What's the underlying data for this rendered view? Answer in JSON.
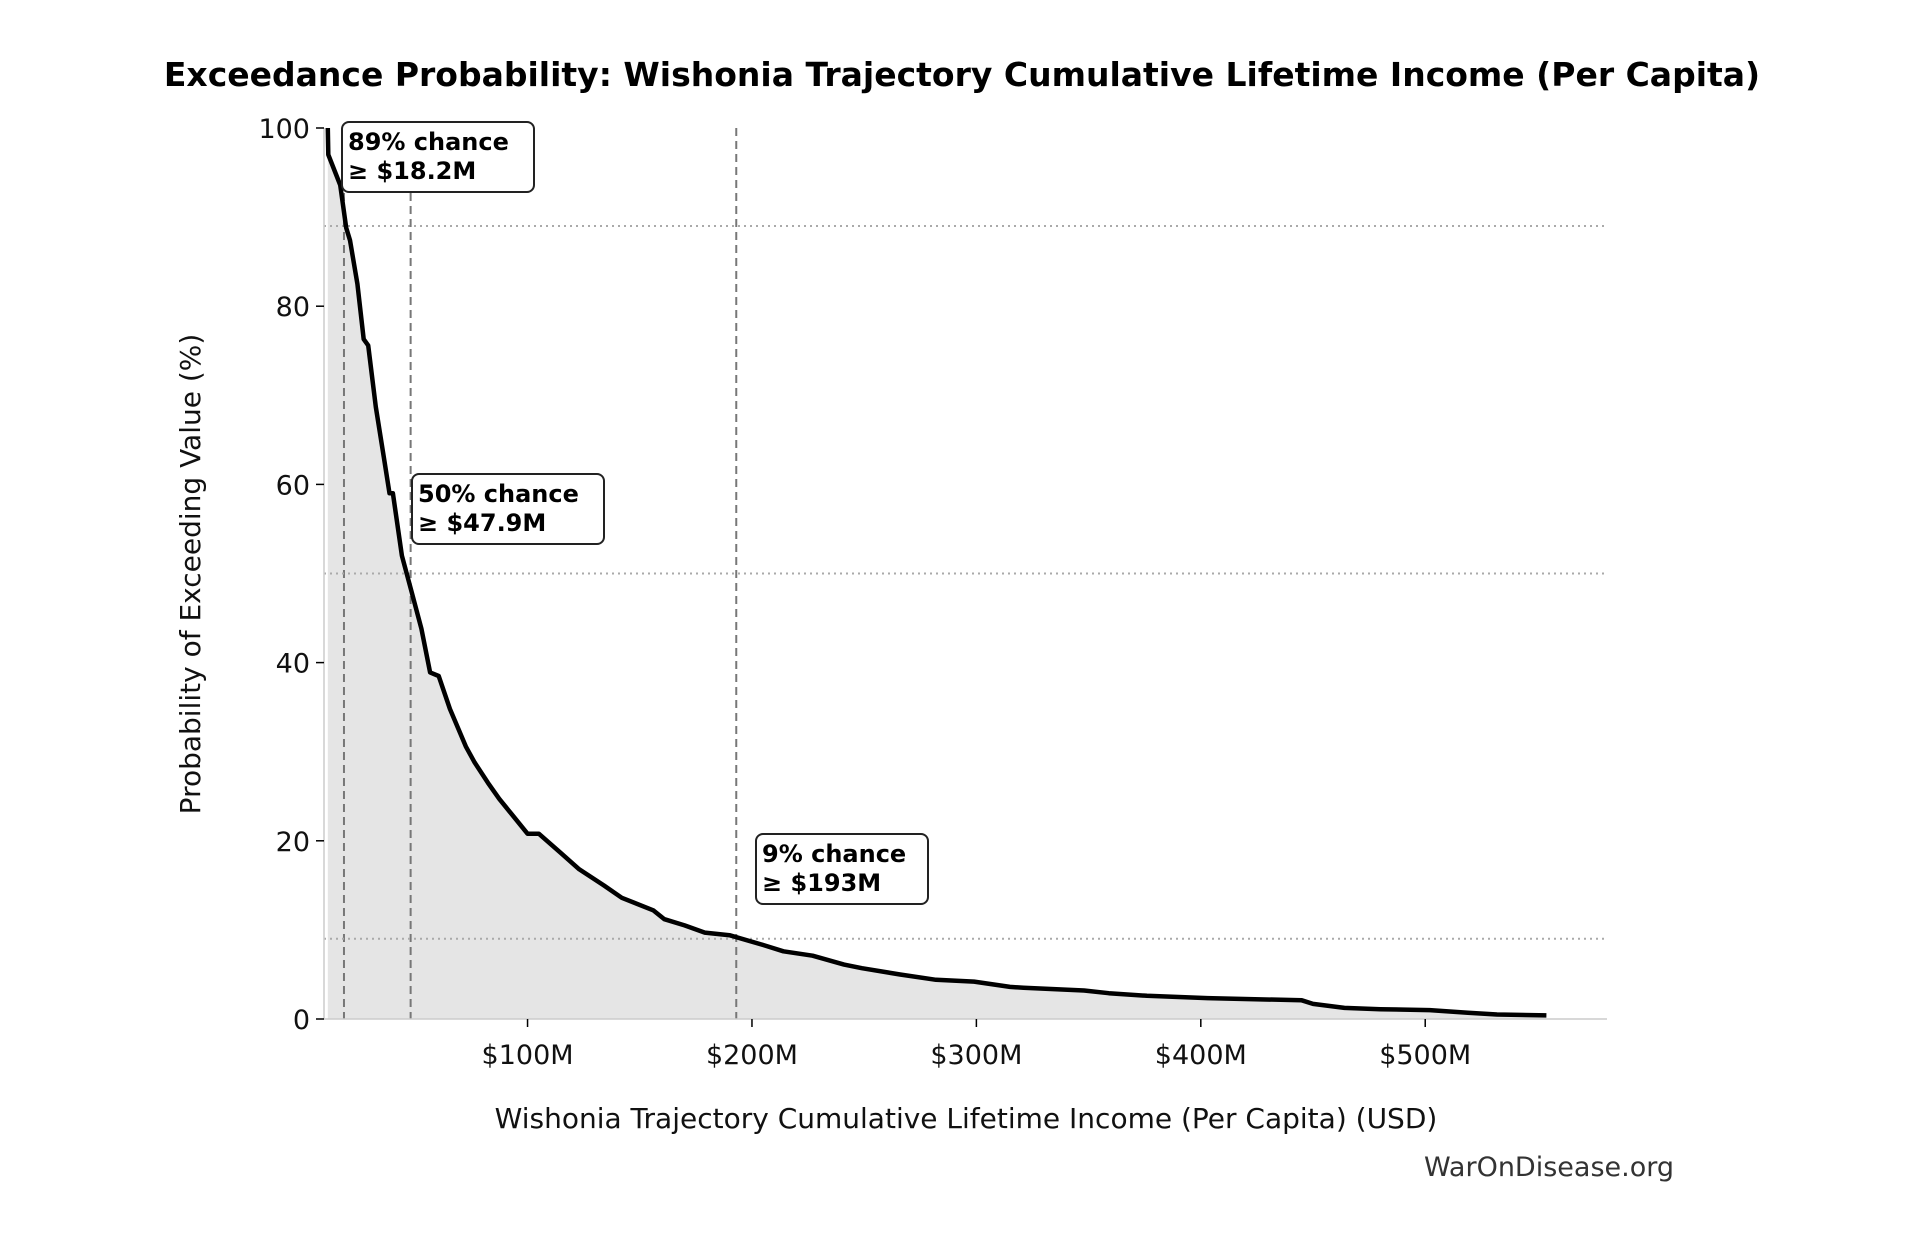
{
  "chart_data": {
    "type": "area",
    "title": "Exceedance Probability: Wishonia Trajectory Cumulative Lifetime Income (Per Capita)",
    "xlabel": "Wishonia Trajectory Cumulative Lifetime Income (Per Capita) (USD)",
    "ylabel": "Probability of Exceeding Value (%)",
    "xlim": [
      9.3,
      581
    ],
    "ylim": [
      0,
      100
    ],
    "x_unit": "$M",
    "x_ticks": [
      {
        "value": 100,
        "label": "$100M"
      },
      {
        "value": 200,
        "label": "$200M"
      },
      {
        "value": 300,
        "label": "$300M"
      },
      {
        "value": 400,
        "label": "$400M"
      },
      {
        "value": 500,
        "label": "$500M"
      }
    ],
    "y_ticks": [
      {
        "value": 0,
        "label": "0"
      },
      {
        "value": 20,
        "label": "20"
      },
      {
        "value": 40,
        "label": "40"
      },
      {
        "value": 60,
        "label": "60"
      },
      {
        "value": 80,
        "label": "80"
      },
      {
        "value": 100,
        "label": "100"
      }
    ],
    "grid": false,
    "line_color": "#000000",
    "fill_color": "#e5e5e5",
    "series": [
      {
        "x": [
          11,
          11.2,
          16.5,
          19.2,
          20.9,
          24.2,
          27,
          29,
          32.4,
          36.3,
          38.5,
          40,
          44,
          48.4,
          52.7,
          56.6,
          60.4,
          65.4,
          72.5,
          76.4,
          82.4,
          87.4,
          92.9,
          100,
          105,
          115,
          123,
          134,
          142,
          156,
          161,
          170,
          179,
          190,
          205,
          214,
          227,
          241,
          249,
          266,
          282,
          299,
          315,
          321,
          348,
          359,
          376,
          403,
          445,
          450,
          464,
          480,
          502,
          519,
          532,
          554
        ],
        "y": [
          100,
          97,
          93.6,
          88.8,
          87.4,
          82.5,
          76.3,
          75.6,
          68.7,
          62.5,
          59,
          59,
          52,
          47.9,
          43.8,
          38.9,
          38.5,
          34.8,
          30.6,
          28.8,
          26.5,
          24.7,
          23,
          20.8,
          20.8,
          18.6,
          16.8,
          15,
          13.6,
          12.2,
          11.2,
          10.5,
          9.7,
          9.4,
          8.3,
          7.6,
          7.1,
          6.1,
          5.7,
          5.0,
          4.4,
          4.2,
          3.6,
          3.5,
          3.2,
          2.9,
          2.6,
          2.35,
          2.1,
          1.7,
          1.25,
          1.1,
          1.0,
          0.7,
          0.5,
          0.4
        ]
      }
    ],
    "reference_lines": [
      {
        "probability": 89,
        "value": 18.2,
        "label_line1": "89% chance",
        "label_line2": "≥ $18.2M"
      },
      {
        "probability": 50,
        "value": 47.9,
        "label_line1": "50% chance",
        "label_line2": "≥ $47.9M"
      },
      {
        "probability": 9,
        "value": 193,
        "label_line1": "9% chance",
        "label_line2": "≥ $193M"
      }
    ],
    "watermark": "WarOnDisease.org"
  }
}
